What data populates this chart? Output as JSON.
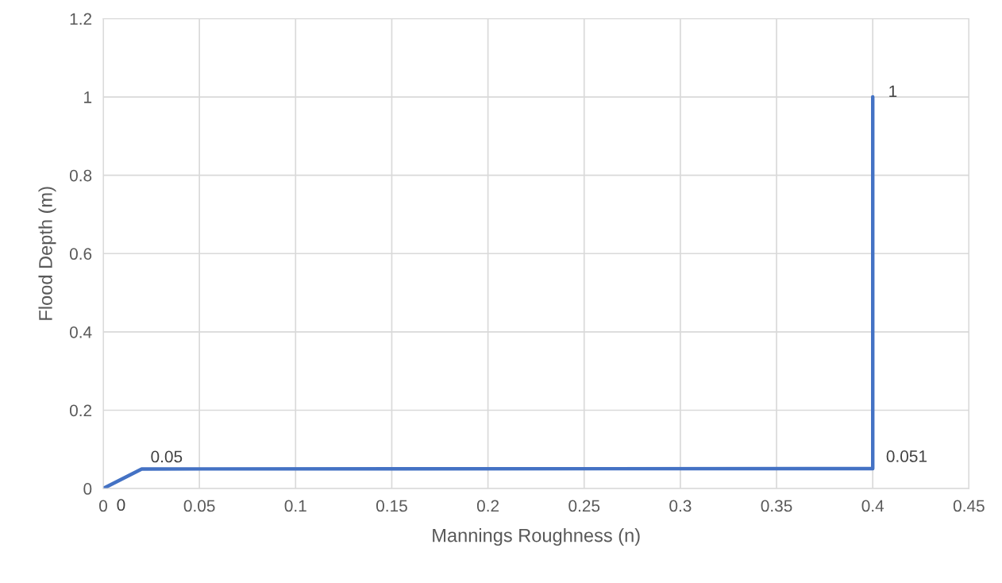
{
  "chart_data": {
    "type": "line",
    "xlabel": "Mannings Roughness (n)",
    "ylabel": "Flood Depth (m)",
    "x": [
      0,
      0.02,
      0.4,
      0.4
    ],
    "series": [
      {
        "color": "#4472c4",
        "values": [
          0,
          0.05,
          0.051,
          1
        ]
      }
    ],
    "data_labels": true,
    "xlim": [
      0,
      0.45
    ],
    "xticks": [
      0,
      0.05,
      0.1,
      0.15,
      0.2,
      0.25,
      0.3,
      0.35,
      0.4,
      0.45
    ],
    "ylim": [
      0,
      1.2
    ],
    "yticks": [
      0,
      0.2,
      0.4,
      0.6,
      0.8,
      1,
      1.2
    ],
    "grid": true,
    "marker": "none",
    "line_style": "solid"
  }
}
